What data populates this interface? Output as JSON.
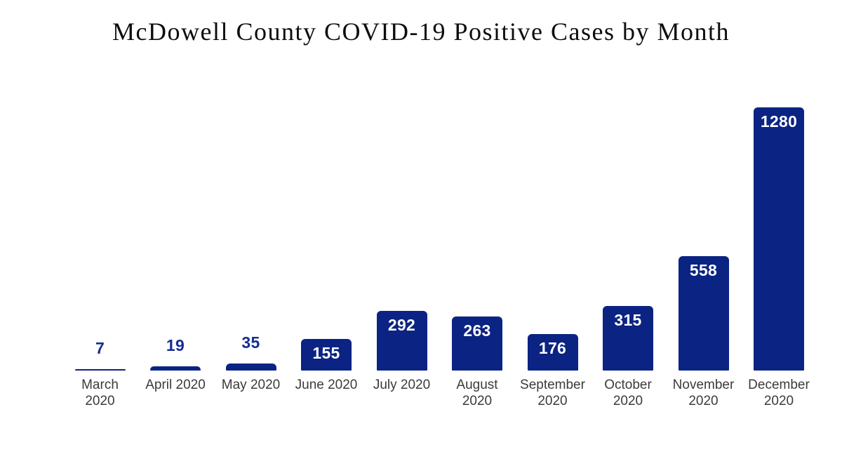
{
  "title": "McDowell County COVID-19 Positive Cases by Month",
  "colors": {
    "background": "#ffffff",
    "bar": "#0b2383",
    "value_label_inside": "#ffffff",
    "value_label_outside": "#152d91",
    "category_label": "#3b3b3b",
    "title": "#0d0d0d"
  },
  "chart_data": {
    "type": "bar",
    "title": "McDowell County COVID-19 Positive Cases by Month",
    "xlabel": "",
    "ylabel": "",
    "ylim": [
      0,
      1280
    ],
    "grid": false,
    "legend": false,
    "bar_color": "#0b2383",
    "categories": [
      "March 2020",
      "April 2020",
      "May 2020",
      "June 2020",
      "July 2020",
      "August 2020",
      "September 2020",
      "October 2020",
      "November 2020",
      "December 2020"
    ],
    "category_label_lines": [
      [
        "March",
        "2020"
      ],
      [
        "April 2020"
      ],
      [
        "May 2020"
      ],
      [
        "June 2020"
      ],
      [
        "July 2020"
      ],
      [
        "August",
        "2020"
      ],
      [
        "September",
        "2020"
      ],
      [
        "October",
        "2020"
      ],
      [
        "November",
        "2020"
      ],
      [
        "December",
        "2020"
      ]
    ],
    "values": [
      7,
      19,
      35,
      155,
      292,
      263,
      176,
      315,
      558,
      1280
    ],
    "value_label_placement": [
      "above",
      "above",
      "above",
      "inside",
      "inside",
      "inside",
      "inside",
      "inside",
      "inside",
      "inside"
    ]
  }
}
